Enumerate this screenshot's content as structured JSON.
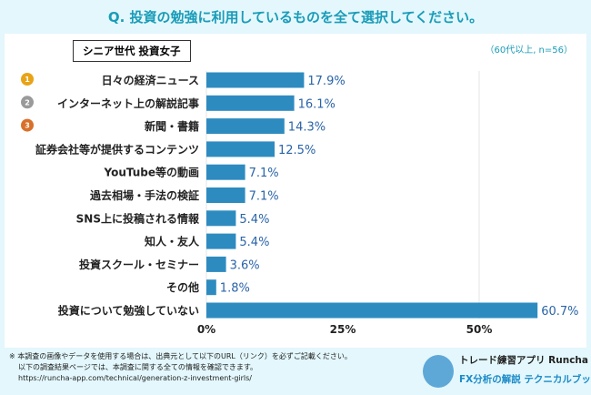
{
  "header": {
    "title": "Q. 投資の勉強に利用しているものを全て選択してください。"
  },
  "segment_label": "シニア世代 投資女子",
  "sample_note": "（60代以上, n=56）",
  "chart_data": {
    "type": "bar",
    "orientation": "horizontal",
    "categories": [
      "日々の経済ニュース",
      "インターネット上の解説記事",
      "新聞・書籍",
      "証券会社等が提供するコンテンツ",
      "YouTube等の動画",
      "過去相場・手法の検証",
      "SNS上に投稿される情報",
      "知人・友人",
      "投資スクール・セミナー",
      "その他",
      "投資について勉強していない"
    ],
    "values": [
      17.9,
      16.1,
      14.3,
      12.5,
      7.1,
      7.1,
      5.4,
      5.4,
      3.6,
      1.8,
      60.7
    ],
    "value_labels": [
      "17.9%",
      "16.1%",
      "14.3%",
      "12.5%",
      "7.1%",
      "7.1%",
      "5.4%",
      "5.4%",
      "3.6%",
      "1.8%",
      "60.7%"
    ],
    "xlim": [
      0,
      60.7
    ],
    "ticks": [
      0,
      25,
      50
    ],
    "tick_labels": [
      "0%",
      "25%",
      "50%"
    ],
    "rank_badges": [
      "1",
      "2",
      "3"
    ],
    "bar_color": "#2e8bc0",
    "label_color": "#2a64a8"
  },
  "footer": {
    "lines": [
      "※ 本調査の画像やデータを使用する場合は、出典元として以下のURL（リンク）を必ずご記載ください。",
      "以下の調査結果ページでは、本調査に関する全ての情報を確認できます。",
      "https://runcha-app.com/technical/generation-z-investment-girls/"
    ]
  },
  "brand": {
    "line1": "トレード練習アプリ Runcha",
    "line2": "FX分析の解説 テクニカルブック"
  }
}
